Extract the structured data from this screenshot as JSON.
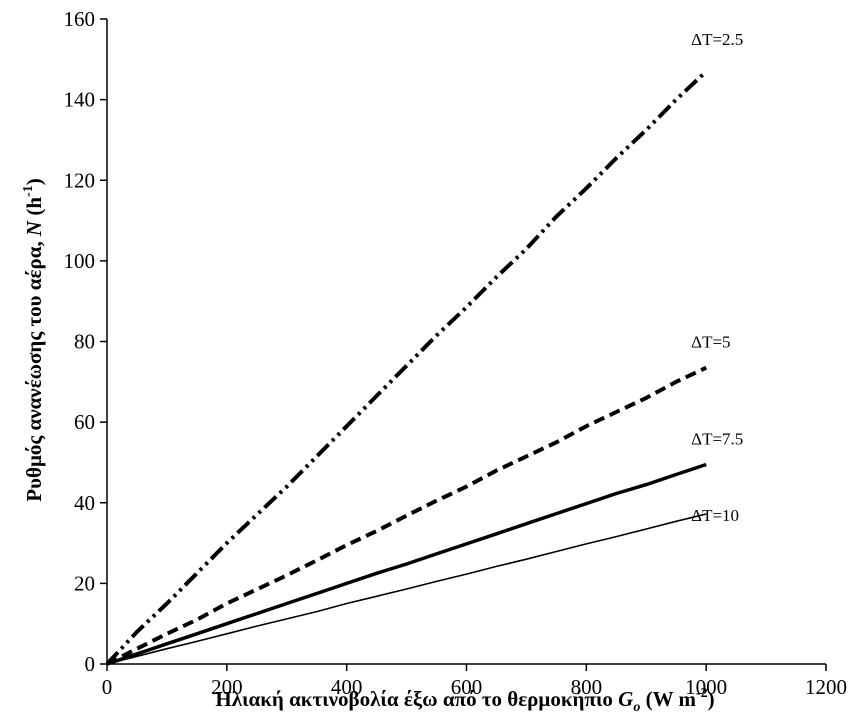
{
  "chart_data": {
    "type": "line",
    "xlabel": {
      "main": "Ηλιακή ακτινοβολία έξω από το θερμοκήπιο ",
      "var": "G",
      "sub": "o",
      "unit_open": "  (W m",
      "sup": "-2",
      "unit_close": ")"
    },
    "ylabel": {
      "main": "Ρυθμός ανανέωσης του αέρα, ",
      "var": "N",
      "unit_open": " (h",
      "sup": "-1",
      "unit_close": ")"
    },
    "xlim": [
      0,
      1200
    ],
    "ylim": [
      0,
      160
    ],
    "xticks": [
      0,
      200,
      400,
      600,
      800,
      1000,
      1200
    ],
    "yticks": [
      0,
      20,
      40,
      60,
      80,
      100,
      120,
      140,
      160
    ],
    "grid": false,
    "legend": "none",
    "series": [
      {
        "name": "ΔT=2.5",
        "label_at": [
          1000,
          155
        ],
        "x": [
          0,
          50,
          100,
          150,
          200,
          250,
          300,
          350,
          400,
          450,
          500,
          550,
          600,
          650,
          700,
          750,
          800,
          850,
          900,
          950,
          1000
        ],
        "y": [
          0,
          8,
          15,
          22.5,
          30,
          37,
          44,
          51.5,
          59,
          66.5,
          74,
          81.5,
          88.5,
          96,
          103,
          111,
          118,
          125.5,
          132.5,
          140,
          147
        ],
        "style": "dash-dot-dot",
        "color": "#000000"
      },
      {
        "name": "ΔT=5",
        "label_at": [
          1000,
          80
        ],
        "x": [
          0,
          50,
          100,
          150,
          200,
          250,
          300,
          350,
          400,
          450,
          500,
          550,
          600,
          650,
          700,
          750,
          800,
          850,
          900,
          950,
          1000
        ],
        "y": [
          0,
          3.8,
          7.5,
          11,
          15,
          18.5,
          22,
          25.7,
          29.5,
          33,
          36.8,
          40.5,
          44,
          48,
          51.5,
          55,
          59,
          62.5,
          66,
          70,
          73.5
        ],
        "style": "dashed",
        "color": "#000000"
      },
      {
        "name": "ΔT=7.5",
        "label_at": [
          1000,
          56
        ],
        "x": [
          0,
          50,
          100,
          150,
          200,
          250,
          300,
          350,
          400,
          450,
          500,
          550,
          600,
          650,
          700,
          750,
          800,
          850,
          900,
          950,
          1000
        ],
        "y": [
          0,
          2.5,
          5,
          7.5,
          10,
          12.5,
          15,
          17.5,
          20,
          22.5,
          24.8,
          27.3,
          29.8,
          32.3,
          34.8,
          37.3,
          39.8,
          42.3,
          44.5,
          47,
          49.5
        ],
        "style": "solid-thick",
        "color": "#000000"
      },
      {
        "name": "ΔT=10",
        "label_at": [
          1000,
          37
        ],
        "x": [
          0,
          50,
          100,
          150,
          200,
          250,
          300,
          350,
          400,
          450,
          500,
          550,
          600,
          650,
          700,
          750,
          800,
          850,
          900,
          950,
          1000
        ],
        "y": [
          0,
          1.9,
          3.8,
          5.6,
          7.5,
          9.4,
          11.2,
          13,
          15,
          16.8,
          18.6,
          20.5,
          22.3,
          24.2,
          26,
          27.9,
          29.8,
          31.6,
          33.5,
          35.4,
          37.2
        ],
        "style": "solid-thin",
        "color": "#000000"
      }
    ]
  }
}
